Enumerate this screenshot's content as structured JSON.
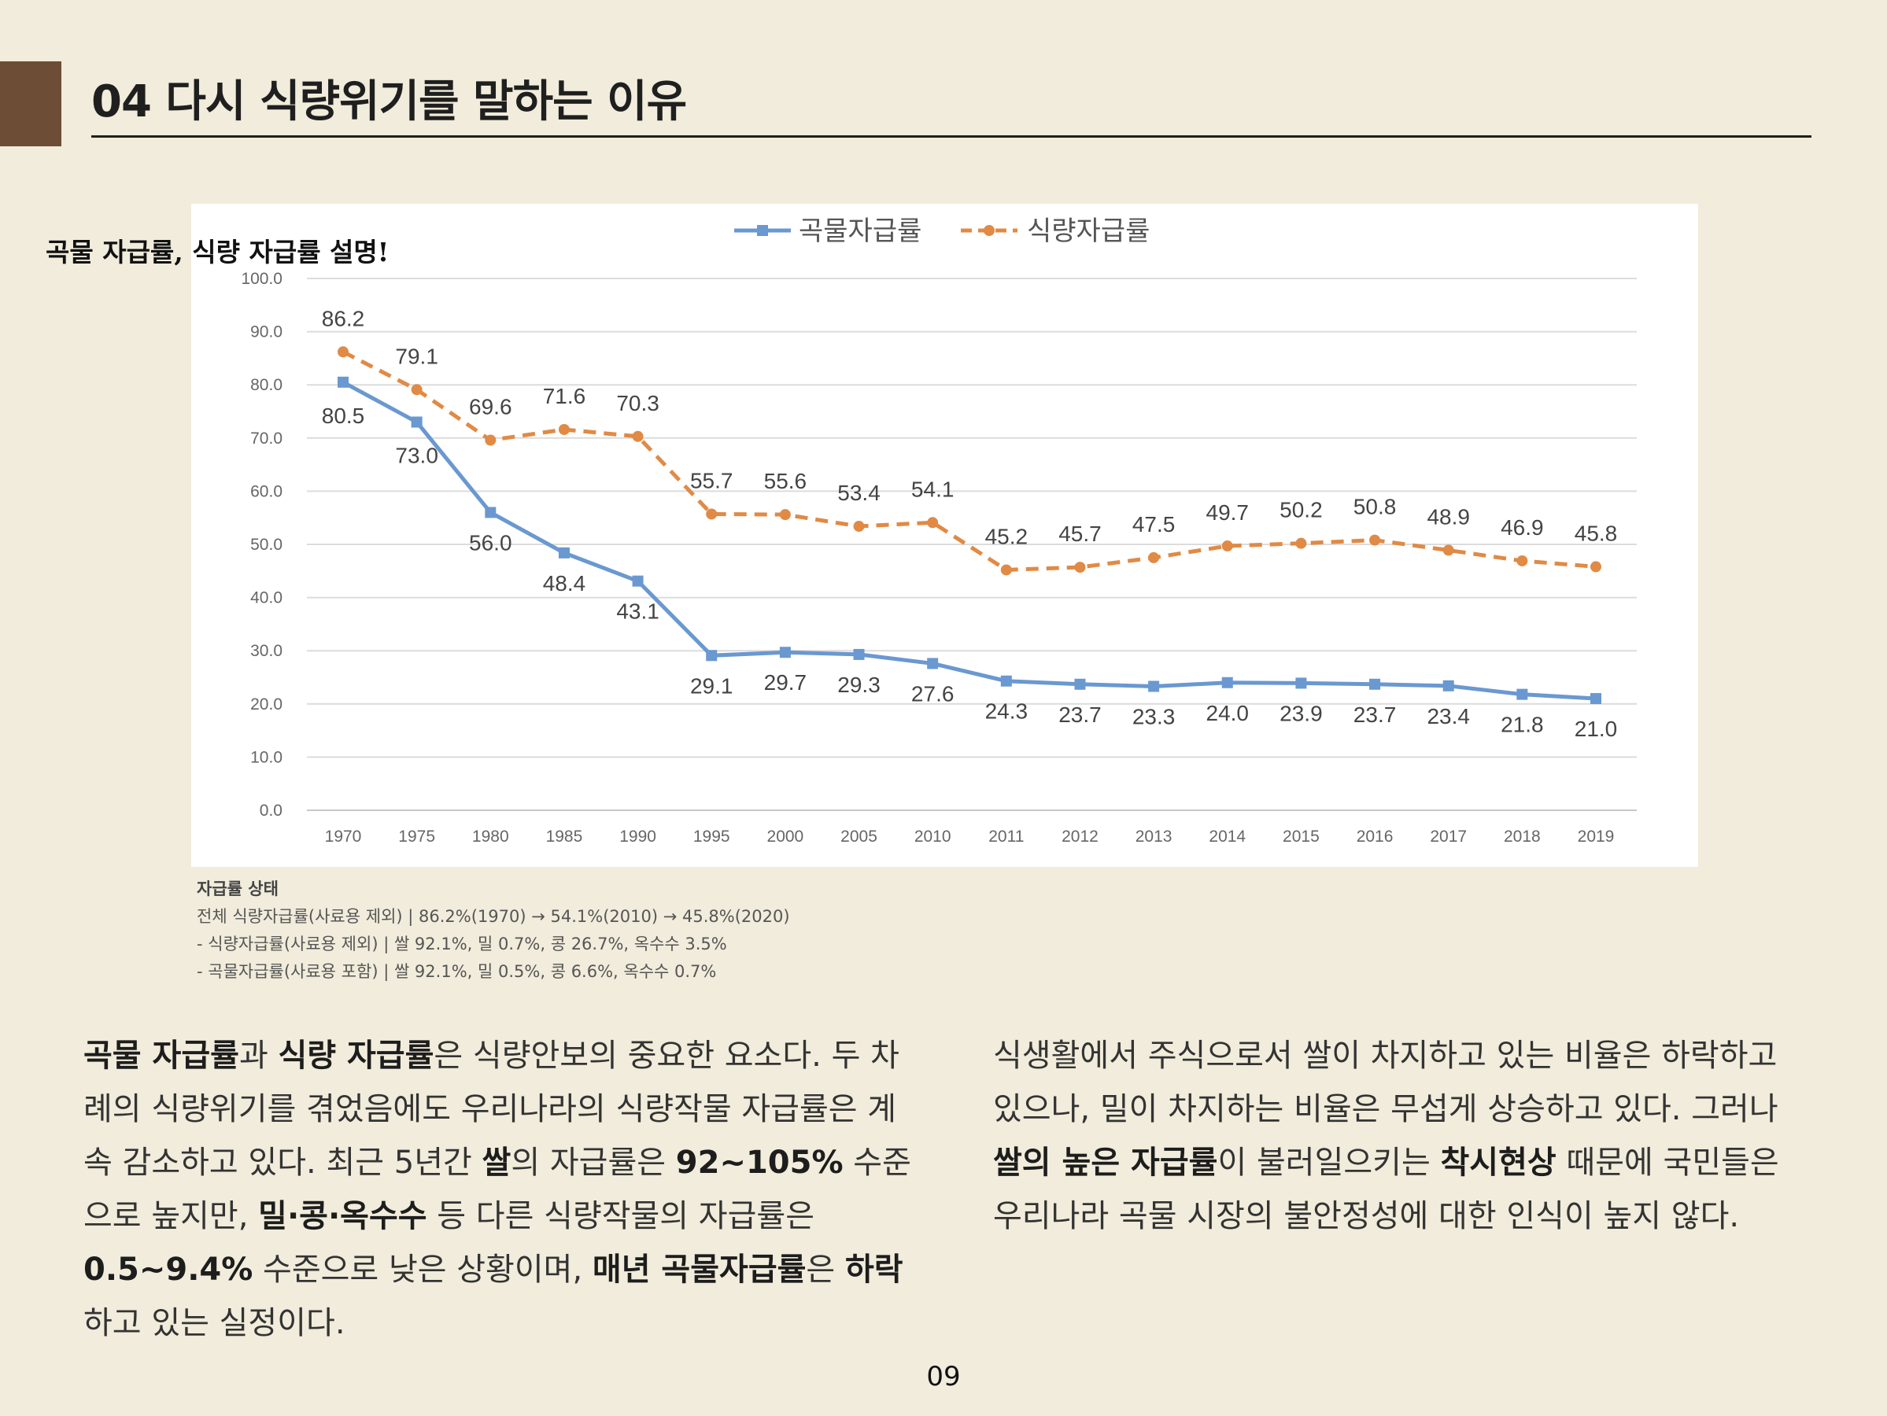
{
  "page": {
    "title": "04 다시 식량위기를 말하는 이유",
    "side_note": "곡물 자급률, 식량 자급률 설명!",
    "page_number": "09"
  },
  "status": {
    "title": "자급률 상태",
    "lines": [
      "전체 식량자급률(사료용 제외) | 86.2%(1970) → 54.1%(2010) → 45.8%(2020)",
      "- 식량자급률(사료용 제외) | 쌀 92.1%, 밀 0.7%, 콩 26.7%, 옥수수 3.5%",
      "- 곡물자급률(사료용 포함) | 쌀 92.1%, 밀 0.5%, 콩 6.6%, 옥수수 0.7%"
    ]
  },
  "body": {
    "left": [
      {
        "t": "곡물 자급률",
        "b": true
      },
      {
        "t": "과 "
      },
      {
        "t": "식량 자급률",
        "b": true
      },
      {
        "t": "은 식량안보의 중요한 요소다. 두 차례의 식량위기를 겪었음에도 우리나라의 식량작물 자급률은 계속 감소하고 있다. 최근 5년간 "
      },
      {
        "t": "쌀",
        "b": true
      },
      {
        "t": "의 자급률은 "
      },
      {
        "t": "92~105%",
        "b": true
      },
      {
        "t": " 수준으로 높지만, "
      },
      {
        "t": "밀·콩·옥수수",
        "b": true
      },
      {
        "t": " 등 다른 식량작물의 자급률은 "
      },
      {
        "t": "0.5~9.4%",
        "b": true
      },
      {
        "t": " 수준으로 낮은 상황이며, "
      },
      {
        "t": "매년 곡물자급률",
        "b": true
      },
      {
        "t": "은 "
      },
      {
        "t": "하락",
        "b": true
      },
      {
        "t": "하고 있는 실정이다."
      }
    ],
    "right": [
      {
        "t": " 식생활에서 주식으로서 쌀이 차지하고 있는 비율은 하락하고 있으나, 밀이 차지하는 비율은 무섭게 상승하고 있다. 그러나 "
      },
      {
        "t": "쌀의 높은 자급률",
        "b": true
      },
      {
        "t": "이 불러일으키는 "
      },
      {
        "t": "착시현상",
        "b": true
      },
      {
        "t": " 때문에 국민들은 우리나라 곡물 시장의 불안정성에 대한 인식이 높지 않다."
      }
    ]
  },
  "chart_data": {
    "type": "line",
    "title": "",
    "xlabel": "",
    "ylabel": "",
    "ylim": [
      0,
      100
    ],
    "yticks": [
      "0.0",
      "10.0",
      "20.0",
      "30.0",
      "40.0",
      "50.0",
      "60.0",
      "70.0",
      "80.0",
      "90.0",
      "100.0"
    ],
    "categories": [
      "1970",
      "1975",
      "1980",
      "1985",
      "1990",
      "1995",
      "2000",
      "2005",
      "2010",
      "2011",
      "2012",
      "2013",
      "2014",
      "2015",
      "2016",
      "2017",
      "2018",
      "2019"
    ],
    "legend_position": "top",
    "series": [
      {
        "name": "곡물자급률",
        "color": "#6a98d0",
        "style": "solid",
        "marker": "square",
        "values": [
          80.5,
          73.0,
          56.0,
          48.4,
          43.1,
          29.1,
          29.7,
          29.3,
          27.6,
          24.3,
          23.7,
          23.3,
          24.0,
          23.9,
          23.7,
          23.4,
          21.8,
          21.0
        ],
        "labels": [
          "80.5",
          "73.0",
          "56.0",
          "48.4",
          "43.1",
          "29.1",
          "29.7",
          "29.3",
          "27.6",
          "24.3",
          "23.7",
          "23.3",
          "24.0",
          "23.9",
          "23.7",
          "23.4",
          "21.8",
          "21.0"
        ]
      },
      {
        "name": "식량자급률",
        "color": "#e08a45",
        "style": "dashed",
        "marker": "circle",
        "values": [
          86.2,
          79.1,
          69.6,
          71.6,
          70.3,
          55.7,
          55.6,
          53.4,
          54.1,
          45.2,
          45.7,
          47.5,
          49.7,
          50.2,
          50.8,
          48.9,
          46.9,
          45.8
        ],
        "labels": [
          "86.2",
          "79.1",
          "69.6",
          "71.6",
          "70.3",
          "55.7",
          "55.6",
          "53.4",
          "54.1",
          "45.2",
          "45.7",
          "47.5",
          "49.7",
          "50.2",
          "50.8",
          "48.9",
          "46.9",
          "45.8"
        ]
      }
    ]
  }
}
